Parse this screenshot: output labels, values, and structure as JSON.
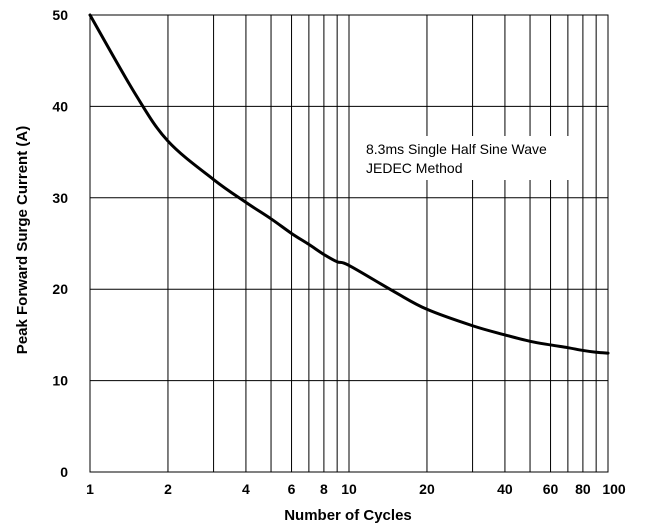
{
  "chart_data": {
    "type": "line",
    "title": "",
    "xlabel": "Number of Cycles",
    "ylabel": "Peak Forward Surge Current (A)",
    "x_scale": "log",
    "xlim": [
      1,
      100
    ],
    "ylim": [
      0,
      50
    ],
    "x_ticks": [
      1,
      2,
      4,
      6,
      8,
      10,
      20,
      40,
      60,
      80,
      100
    ],
    "x_tick_labels": [
      "1",
      "2",
      "4",
      "6",
      "8",
      "10",
      "20",
      "40",
      "60",
      "80",
      "100"
    ],
    "y_ticks": [
      0,
      10,
      20,
      30,
      40,
      50
    ],
    "y_tick_labels": [
      "0",
      "10",
      "20",
      "30",
      "40",
      "50"
    ],
    "grid": true,
    "annotation_lines": [
      "8.3ms Single Half Sine Wave",
      "JEDEC Method"
    ],
    "series": [
      {
        "x": [
          1,
          1.5,
          2,
          3,
          4,
          5,
          6,
          7,
          8,
          9,
          10,
          15,
          20,
          30,
          40,
          50,
          60,
          70,
          80,
          90,
          100
        ],
        "y": [
          50,
          41.3,
          36.2,
          32.0,
          29.5,
          27.7,
          26.1,
          24.9,
          23.8,
          23.0,
          22.6,
          19.7,
          17.8,
          16.0,
          15.0,
          14.3,
          13.9,
          13.6,
          13.3,
          13.1,
          13.0
        ]
      }
    ],
    "colors": {
      "line": "#000000",
      "grid": "#000000",
      "background": "#ffffff"
    }
  }
}
